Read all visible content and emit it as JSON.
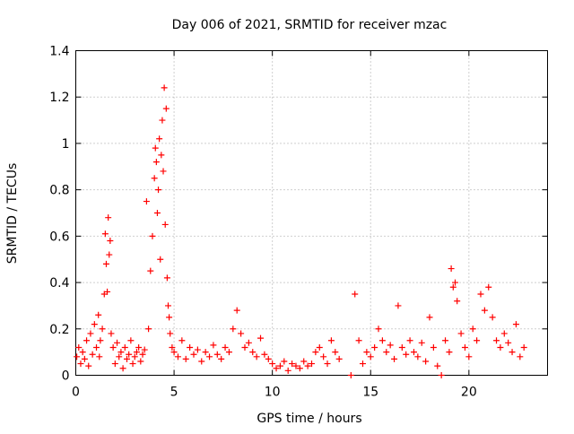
{
  "chart_data": {
    "type": "scatter",
    "title": "Day 006 of 2021, SRMTID for receiver mzac",
    "xlabel": "GPS time / hours",
    "ylabel": "SRMTID / TECUs",
    "xlim": [
      0,
      24
    ],
    "ylim": [
      0,
      1.4
    ],
    "xticks": [
      0,
      5,
      10,
      15,
      20
    ],
    "xtick_labels": [
      "0",
      "5",
      "10",
      "15",
      "20"
    ],
    "yticks": [
      0,
      0.2,
      0.4,
      0.6,
      0.8,
      1,
      1.2,
      1.4
    ],
    "ytick_labels": [
      "0",
      "0.2",
      "0.4",
      "0.6",
      "0.8",
      "1",
      "1.2",
      "1.4"
    ],
    "grid": true,
    "marker": "+",
    "marker_color": "#ff0000",
    "series": [
      {
        "name": "SRMTID",
        "x": [
          0.05,
          0.15,
          0.25,
          0.35,
          0.45,
          0.55,
          0.65,
          0.75,
          0.85,
          0.95,
          1.05,
          1.15,
          1.2,
          1.25,
          1.35,
          1.45,
          1.5,
          1.55,
          1.6,
          1.65,
          1.7,
          1.75,
          1.8,
          1.9,
          2.0,
          2.1,
          2.2,
          2.3,
          2.4,
          2.5,
          2.6,
          2.7,
          2.8,
          2.9,
          3.0,
          3.1,
          3.2,
          3.3,
          3.4,
          3.5,
          3.6,
          3.7,
          3.8,
          3.9,
          4.0,
          4.05,
          4.1,
          4.15,
          4.2,
          4.25,
          4.3,
          4.35,
          4.4,
          4.45,
          4.5,
          4.55,
          4.6,
          4.65,
          4.7,
          4.75,
          4.8,
          4.9,
          5.0,
          5.2,
          5.4,
          5.6,
          5.8,
          6.0,
          6.2,
          6.4,
          6.6,
          6.8,
          7.0,
          7.2,
          7.4,
          7.6,
          7.8,
          8.0,
          8.2,
          8.4,
          8.6,
          8.8,
          9.0,
          9.2,
          9.4,
          9.6,
          9.8,
          10.0,
          10.2,
          10.4,
          10.6,
          10.8,
          11.0,
          11.2,
          11.4,
          11.6,
          11.8,
          12.0,
          12.2,
          12.4,
          12.6,
          12.8,
          13.0,
          13.2,
          13.4,
          14.0,
          14.2,
          14.4,
          14.6,
          14.8,
          15.0,
          15.2,
          15.4,
          15.6,
          15.8,
          16.0,
          16.2,
          16.4,
          16.6,
          16.8,
          17.0,
          17.2,
          17.4,
          17.6,
          17.8,
          18.0,
          18.2,
          18.4,
          18.6,
          18.8,
          19.0,
          19.1,
          19.2,
          19.3,
          19.4,
          19.6,
          19.8,
          20.0,
          20.2,
          20.4,
          20.6,
          20.8,
          21.0,
          21.2,
          21.4,
          21.6,
          21.8,
          22.0,
          22.2,
          22.4,
          22.6,
          22.8
        ],
        "y": [
          0.08,
          0.12,
          0.05,
          0.1,
          0.07,
          0.15,
          0.04,
          0.18,
          0.09,
          0.22,
          0.12,
          0.26,
          0.08,
          0.15,
          0.2,
          0.35,
          0.61,
          0.48,
          0.36,
          0.68,
          0.52,
          0.58,
          0.18,
          0.12,
          0.05,
          0.14,
          0.08,
          0.1,
          0.03,
          0.12,
          0.07,
          0.09,
          0.15,
          0.05,
          0.08,
          0.1,
          0.12,
          0.06,
          0.09,
          0.11,
          0.75,
          0.2,
          0.45,
          0.6,
          0.85,
          0.98,
          0.92,
          0.7,
          0.8,
          1.02,
          0.5,
          0.95,
          1.1,
          0.88,
          1.24,
          0.65,
          1.15,
          0.42,
          0.3,
          0.25,
          0.18,
          0.12,
          0.1,
          0.08,
          0.15,
          0.07,
          0.12,
          0.09,
          0.11,
          0.06,
          0.1,
          0.08,
          0.13,
          0.09,
          0.07,
          0.12,
          0.1,
          0.2,
          0.28,
          0.18,
          0.12,
          0.14,
          0.1,
          0.08,
          0.16,
          0.09,
          0.07,
          0.05,
          0.03,
          0.04,
          0.06,
          0.02,
          0.05,
          0.04,
          0.03,
          0.06,
          0.04,
          0.05,
          0.1,
          0.12,
          0.08,
          0.05,
          0.15,
          0.1,
          0.07,
          0.0,
          0.35,
          0.15,
          0.05,
          0.1,
          0.08,
          0.12,
          0.2,
          0.15,
          0.1,
          0.13,
          0.07,
          0.3,
          0.12,
          0.09,
          0.15,
          0.1,
          0.08,
          0.14,
          0.06,
          0.25,
          0.12,
          0.04,
          0.0,
          0.15,
          0.1,
          0.46,
          0.38,
          0.4,
          0.32,
          0.18,
          0.12,
          0.08,
          0.2,
          0.15,
          0.35,
          0.28,
          0.38,
          0.25,
          0.15,
          0.12,
          0.18,
          0.14,
          0.1,
          0.22,
          0.08,
          0.12
        ]
      }
    ]
  }
}
